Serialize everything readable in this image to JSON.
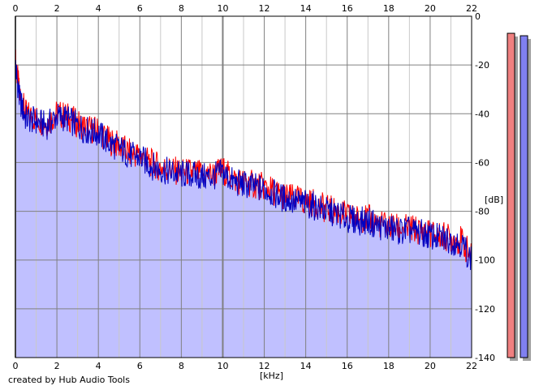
{
  "app": {
    "credit": "created by Hub Audio Tools"
  },
  "colors": {
    "background": "#ffffff",
    "plot_fill": "#c0c0ff",
    "grid_major": "#808080",
    "grid_minor": "#c8c8c8",
    "left_channel": "#ff0000",
    "right_channel": "#0000c0",
    "left_meter": "#f08080",
    "right_meter": "#8080f0"
  },
  "chart_data": {
    "type": "line",
    "xlabel": "[kHz]",
    "ylabel": "[dB]",
    "xlim": [
      0,
      22
    ],
    "ylim": [
      -140,
      0
    ],
    "x_ticks": [
      "0",
      "2",
      "4",
      "6",
      "8",
      "10",
      "12",
      "14",
      "16",
      "18",
      "20",
      "22"
    ],
    "y_ticks": [
      "0",
      "-20",
      "-40",
      "-60",
      "-80",
      "-100",
      "-120",
      "-140"
    ],
    "grid": true,
    "fill_under": true,
    "series": [
      {
        "color": "#ff0000",
        "x": [
          0,
          0.2,
          0.5,
          1,
          1.5,
          2,
          2.5,
          3,
          3.5,
          4,
          4.5,
          5,
          5.5,
          6,
          6.5,
          7,
          7.5,
          8,
          8.5,
          9,
          9.5,
          10,
          10.5,
          11,
          11.5,
          12,
          12.5,
          13,
          13.5,
          14,
          14.5,
          15,
          15.5,
          16,
          16.5,
          17,
          17.5,
          18,
          18.5,
          19,
          19.5,
          20,
          20.5,
          21,
          21.5,
          22
        ],
        "y": [
          -18,
          -32,
          -40,
          -42,
          -44,
          -40,
          -41,
          -44,
          -46,
          -47,
          -51,
          -53,
          -56,
          -57,
          -60,
          -62,
          -63,
          -64,
          -64,
          -65,
          -65,
          -63,
          -67,
          -68,
          -69,
          -70,
          -72,
          -74,
          -75,
          -76,
          -77,
          -79,
          -80,
          -82,
          -83,
          -83,
          -85,
          -86,
          -87,
          -87,
          -88,
          -89,
          -90,
          -91,
          -92,
          -99
        ]
      },
      {
        "color": "#0000c0",
        "x": [
          0,
          0.2,
          0.5,
          1,
          1.5,
          2,
          2.5,
          3,
          3.5,
          4,
          4.5,
          5,
          5.5,
          6,
          6.5,
          7,
          7.5,
          8,
          8.5,
          9,
          9.5,
          10,
          10.5,
          11,
          11.5,
          12,
          12.5,
          13,
          13.5,
          14,
          14.5,
          15,
          15.5,
          16,
          16.5,
          17,
          17.5,
          18,
          18.5,
          19,
          19.5,
          20,
          20.5,
          21,
          21.5,
          22
        ],
        "y": [
          -20,
          -34,
          -42,
          -43,
          -45,
          -41,
          -42,
          -45,
          -47,
          -48,
          -52,
          -54,
          -57,
          -58,
          -61,
          -63,
          -64,
          -65,
          -65,
          -66,
          -66,
          -64,
          -68,
          -69,
          -70,
          -71,
          -73,
          -75,
          -76,
          -77,
          -78,
          -80,
          -81,
          -83,
          -84,
          -84,
          -86,
          -87,
          -88,
          -88,
          -89,
          -90,
          -91,
          -92,
          -93,
          -100
        ]
      }
    ],
    "level_meters": [
      {
        "channel": "left",
        "value_db": -7
      },
      {
        "channel": "right",
        "value_db": -8
      }
    ]
  }
}
